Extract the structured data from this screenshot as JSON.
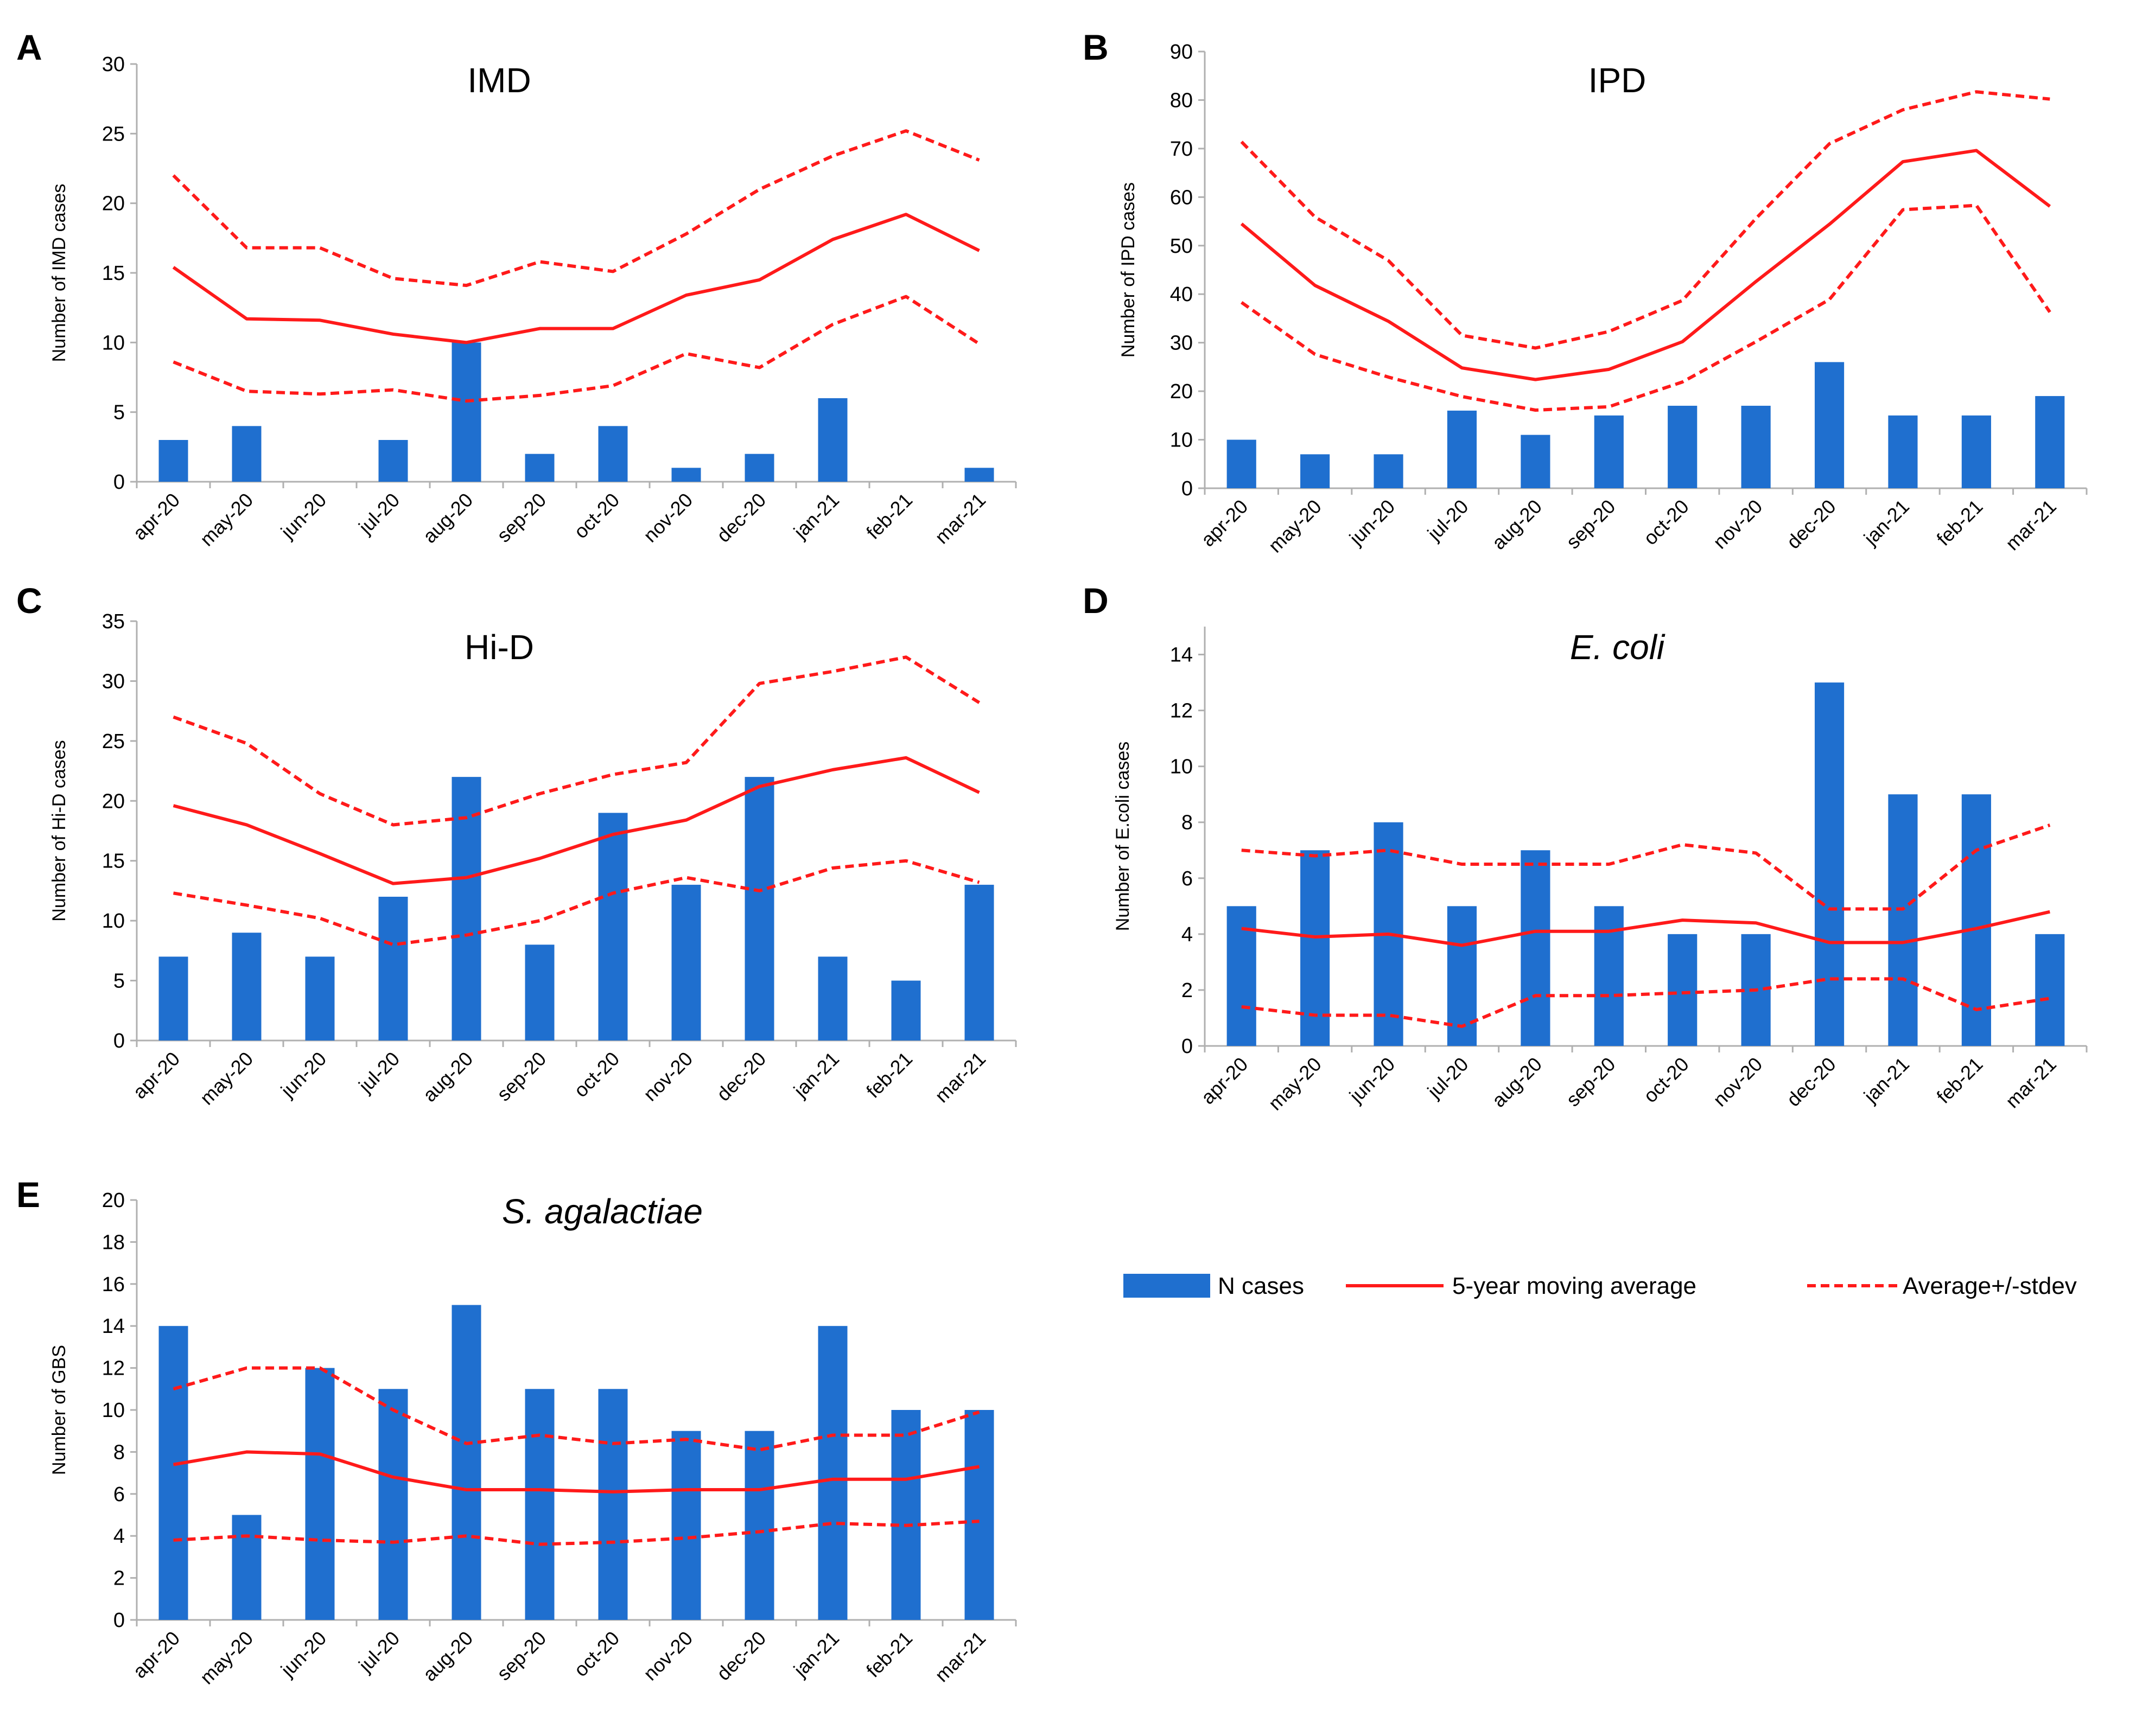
{
  "colors": {
    "bar": "#1f6fcf",
    "average_line": "#ff1a1a",
    "stdev_line": "#ff1a1a",
    "axis": "#b0b0b0",
    "text": "#000000"
  },
  "legend": {
    "bars": "N cases",
    "average": "5-year moving average",
    "stdev": "Average+/-stdev"
  },
  "chart_data": [
    {
      "panel": "A",
      "type": "bar",
      "title": "IMD",
      "italic": false,
      "ylabel": "Number of IMD cases",
      "ylim": [
        0,
        30
      ],
      "yticks": [
        0,
        5,
        10,
        15,
        20,
        25,
        30
      ],
      "categories": [
        "apr-20",
        "may-20",
        "jun-20",
        "jul-20",
        "aug-20",
        "sep-20",
        "oct-20",
        "nov-20",
        "dec-20",
        "jan-21",
        "feb-21",
        "mar-21"
      ],
      "series": [
        {
          "name": "N cases",
          "kind": "bar",
          "values": [
            3,
            4,
            0,
            3,
            10,
            2,
            4,
            1,
            2,
            6,
            0,
            1
          ]
        },
        {
          "name": "5-year moving average",
          "kind": "line",
          "values": [
            15.4,
            11.7,
            11.6,
            10.6,
            10.0,
            11.0,
            11.0,
            13.4,
            14.5,
            17.4,
            19.2,
            16.6
          ]
        },
        {
          "name": "Average+stdev",
          "kind": "dashed",
          "values": [
            22.0,
            16.8,
            16.8,
            14.6,
            14.1,
            15.8,
            15.1,
            17.8,
            21.0,
            23.4,
            25.2,
            23.1
          ]
        },
        {
          "name": "Average-stdev",
          "kind": "dashed",
          "values": [
            8.6,
            6.5,
            6.3,
            6.6,
            5.8,
            6.2,
            6.9,
            9.2,
            8.2,
            11.3,
            13.3,
            9.9
          ]
        }
      ]
    },
    {
      "panel": "B",
      "type": "bar",
      "title": "IPD",
      "italic": false,
      "ylabel": "Number of IPD cases",
      "ylim": [
        0,
        90
      ],
      "yticks": [
        0,
        10,
        20,
        30,
        40,
        50,
        60,
        70,
        80,
        90
      ],
      "categories": [
        "apr-20",
        "may-20",
        "jun-20",
        "jul-20",
        "aug-20",
        "sep-20",
        "oct-20",
        "nov-20",
        "dec-20",
        "jan-21",
        "feb-21",
        "mar-21"
      ],
      "series": [
        {
          "name": "N cases",
          "kind": "bar",
          "values": [
            10,
            7,
            7,
            16,
            11,
            15,
            17,
            17,
            26,
            15,
            15,
            19
          ]
        },
        {
          "name": "5-year moving average",
          "kind": "line",
          "values": [
            54.5,
            41.8,
            34.4,
            24.8,
            22.4,
            24.5,
            30.2,
            42.6,
            54.4,
            67.3,
            69.6,
            58.1
          ]
        },
        {
          "name": "Average+stdev",
          "kind": "dashed",
          "values": [
            71.4,
            55.9,
            46.9,
            31.5,
            28.9,
            32.3,
            38.7,
            55.6,
            71.0,
            78.0,
            81.7,
            80.2
          ]
        },
        {
          "name": "Average-stdev",
          "kind": "dashed",
          "values": [
            38.3,
            27.6,
            22.9,
            18.9,
            16.1,
            16.8,
            21.9,
            30.2,
            38.9,
            57.4,
            58.3,
            36.3
          ]
        }
      ]
    },
    {
      "panel": "C",
      "type": "bar",
      "title": "Hi-D",
      "italic": false,
      "ylabel": "Number of Hi-D cases",
      "ylim": [
        0,
        35
      ],
      "yticks": [
        0,
        5,
        10,
        15,
        20,
        25,
        30,
        35
      ],
      "categories": [
        "apr-20",
        "may-20",
        "jun-20",
        "jul-20",
        "aug-20",
        "sep-20",
        "oct-20",
        "nov-20",
        "dec-20",
        "jan-21",
        "feb-21",
        "mar-21"
      ],
      "series": [
        {
          "name": "N cases",
          "kind": "bar",
          "values": [
            7,
            9,
            7,
            12,
            22,
            8,
            19,
            13,
            22,
            7,
            5,
            13
          ]
        },
        {
          "name": "5-year moving average",
          "kind": "line",
          "values": [
            19.6,
            18.0,
            15.6,
            13.1,
            13.6,
            15.2,
            17.2,
            18.4,
            21.2,
            22.6,
            23.6,
            20.7
          ]
        },
        {
          "name": "Average+stdev",
          "kind": "dashed",
          "values": [
            27.0,
            24.8,
            20.6,
            18.0,
            18.6,
            20.6,
            22.2,
            23.2,
            29.8,
            30.8,
            32.0,
            28.2
          ]
        },
        {
          "name": "Average-stdev",
          "kind": "dashed",
          "values": [
            12.3,
            11.3,
            10.2,
            8.0,
            8.8,
            10.0,
            12.3,
            13.6,
            12.5,
            14.4,
            15.0,
            13.2
          ]
        }
      ]
    },
    {
      "panel": "D",
      "type": "bar",
      "title": "E. coli",
      "italic": true,
      "ylabel": "Number of E.coli cases",
      "ylim": [
        0,
        15
      ],
      "yticks": [
        0,
        2,
        4,
        6,
        8,
        10,
        12,
        14
      ],
      "categories": [
        "apr-20",
        "may-20",
        "jun-20",
        "jul-20",
        "aug-20",
        "sep-20",
        "oct-20",
        "nov-20",
        "dec-20",
        "jan-21",
        "feb-21",
        "mar-21"
      ],
      "series": [
        {
          "name": "N cases",
          "kind": "bar",
          "values": [
            5,
            7,
            8,
            5,
            7,
            5,
            4,
            4,
            13,
            9,
            9,
            4
          ]
        },
        {
          "name": "5-year moving average",
          "kind": "line",
          "values": [
            4.2,
            3.9,
            4.0,
            3.6,
            4.1,
            4.1,
            4.5,
            4.4,
            3.7,
            3.7,
            4.2,
            4.8
          ]
        },
        {
          "name": "Average+stdev",
          "kind": "dashed",
          "values": [
            7.0,
            6.8,
            7.0,
            6.5,
            6.5,
            6.5,
            7.2,
            6.9,
            4.9,
            4.9,
            7.0,
            7.9
          ]
        },
        {
          "name": "Average-stdev",
          "kind": "dashed",
          "values": [
            1.4,
            1.1,
            1.1,
            0.7,
            1.8,
            1.8,
            1.9,
            2.0,
            2.4,
            2.4,
            1.3,
            1.7
          ]
        }
      ]
    },
    {
      "panel": "E",
      "type": "bar",
      "title": "S. agalactiae",
      "italic": true,
      "ylabel": "Number of GBS",
      "ylim": [
        0,
        20
      ],
      "yticks": [
        0,
        2,
        4,
        6,
        8,
        10,
        12,
        14,
        16,
        18,
        20
      ],
      "categories": [
        "apr-20",
        "may-20",
        "jun-20",
        "jul-20",
        "aug-20",
        "sep-20",
        "oct-20",
        "nov-20",
        "dec-20",
        "jan-21",
        "feb-21",
        "mar-21"
      ],
      "series": [
        {
          "name": "N cases",
          "kind": "bar",
          "values": [
            14,
            5,
            12,
            11,
            15,
            11,
            11,
            9,
            9,
            14,
            10,
            10
          ]
        },
        {
          "name": "5-year moving average",
          "kind": "line",
          "values": [
            7.4,
            8.0,
            7.9,
            6.8,
            6.2,
            6.2,
            6.1,
            6.2,
            6.2,
            6.7,
            6.7,
            7.3
          ]
        },
        {
          "name": "Average+stdev",
          "kind": "dashed",
          "values": [
            11.0,
            12.0,
            12.0,
            10.0,
            8.4,
            8.8,
            8.4,
            8.6,
            8.1,
            8.8,
            8.8,
            9.9
          ]
        },
        {
          "name": "Average-stdev",
          "kind": "dashed",
          "values": [
            3.8,
            4.0,
            3.8,
            3.7,
            4.0,
            3.6,
            3.7,
            3.9,
            4.2,
            4.6,
            4.5,
            4.7
          ]
        }
      ]
    }
  ]
}
